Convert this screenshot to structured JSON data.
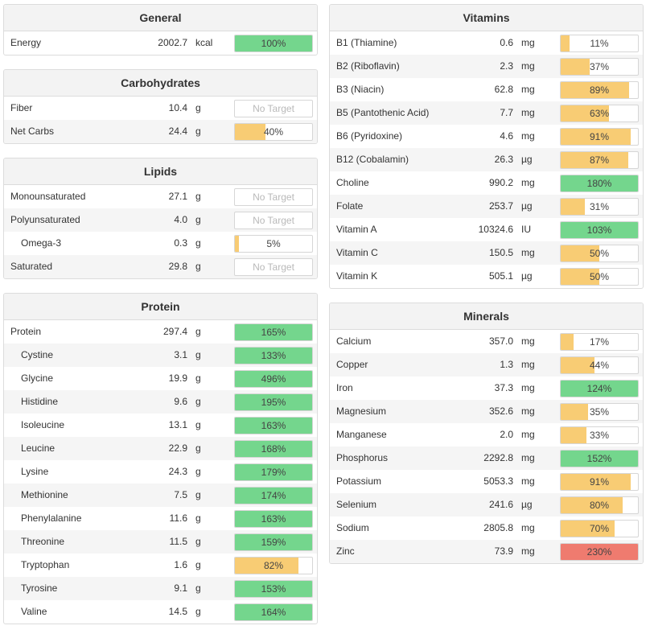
{
  "colors": {
    "green": "#74d68d",
    "yellow": "#f8cc74",
    "red": "#ef7b6f",
    "empty": "#ffffff"
  },
  "panels": [
    {
      "id": "general",
      "column": "left",
      "title": "General",
      "rows": [
        {
          "name": "Energy",
          "amount": "2002.7",
          "unit": "kcal",
          "pct": "100%",
          "fill": 1.0,
          "color": "green"
        }
      ]
    },
    {
      "id": "carbohydrates",
      "column": "left",
      "title": "Carbohydrates",
      "rows": [
        {
          "name": "Fiber",
          "amount": "10.4",
          "unit": "g",
          "pct": "No Target",
          "fill": 0,
          "color": "none"
        },
        {
          "name": "Net Carbs",
          "amount": "24.4",
          "unit": "g",
          "pct": "40%",
          "fill": 0.4,
          "color": "yellow"
        }
      ]
    },
    {
      "id": "lipids",
      "column": "left",
      "title": "Lipids",
      "rows": [
        {
          "name": "Monounsaturated",
          "amount": "27.1",
          "unit": "g",
          "pct": "No Target",
          "fill": 0,
          "color": "none"
        },
        {
          "name": "Polyunsaturated",
          "amount": "4.0",
          "unit": "g",
          "pct": "No Target",
          "fill": 0,
          "color": "none"
        },
        {
          "name": "Omega-3",
          "amount": "0.3",
          "unit": "g",
          "pct": "5%",
          "fill": 0.05,
          "color": "yellow",
          "sub": true
        },
        {
          "name": "Saturated",
          "amount": "29.8",
          "unit": "g",
          "pct": "No Target",
          "fill": 0,
          "color": "none"
        }
      ]
    },
    {
      "id": "protein",
      "column": "left",
      "title": "Protein",
      "rows": [
        {
          "name": "Protein",
          "amount": "297.4",
          "unit": "g",
          "pct": "165%",
          "fill": 1.0,
          "color": "green"
        },
        {
          "name": "Cystine",
          "amount": "3.1",
          "unit": "g",
          "pct": "133%",
          "fill": 1.0,
          "color": "green",
          "sub": true
        },
        {
          "name": "Glycine",
          "amount": "19.9",
          "unit": "g",
          "pct": "496%",
          "fill": 1.0,
          "color": "green",
          "sub": true
        },
        {
          "name": "Histidine",
          "amount": "9.6",
          "unit": "g",
          "pct": "195%",
          "fill": 1.0,
          "color": "green",
          "sub": true
        },
        {
          "name": "Isoleucine",
          "amount": "13.1",
          "unit": "g",
          "pct": "163%",
          "fill": 1.0,
          "color": "green",
          "sub": true
        },
        {
          "name": "Leucine",
          "amount": "22.9",
          "unit": "g",
          "pct": "168%",
          "fill": 1.0,
          "color": "green",
          "sub": true
        },
        {
          "name": "Lysine",
          "amount": "24.3",
          "unit": "g",
          "pct": "179%",
          "fill": 1.0,
          "color": "green",
          "sub": true
        },
        {
          "name": "Methionine",
          "amount": "7.5",
          "unit": "g",
          "pct": "174%",
          "fill": 1.0,
          "color": "green",
          "sub": true
        },
        {
          "name": "Phenylalanine",
          "amount": "11.6",
          "unit": "g",
          "pct": "163%",
          "fill": 1.0,
          "color": "green",
          "sub": true
        },
        {
          "name": "Threonine",
          "amount": "11.5",
          "unit": "g",
          "pct": "159%",
          "fill": 1.0,
          "color": "green",
          "sub": true
        },
        {
          "name": "Tryptophan",
          "amount": "1.6",
          "unit": "g",
          "pct": "82%",
          "fill": 0.82,
          "color": "yellow",
          "sub": true
        },
        {
          "name": "Tyrosine",
          "amount": "9.1",
          "unit": "g",
          "pct": "153%",
          "fill": 1.0,
          "color": "green",
          "sub": true
        },
        {
          "name": "Valine",
          "amount": "14.5",
          "unit": "g",
          "pct": "164%",
          "fill": 1.0,
          "color": "green",
          "sub": true
        }
      ]
    },
    {
      "id": "vitamins",
      "column": "right",
      "title": "Vitamins",
      "rows": [
        {
          "name": "B1 (Thiamine)",
          "amount": "0.6",
          "unit": "mg",
          "pct": "11%",
          "fill": 0.11,
          "color": "yellow"
        },
        {
          "name": "B2 (Riboflavin)",
          "amount": "2.3",
          "unit": "mg",
          "pct": "37%",
          "fill": 0.37,
          "color": "yellow"
        },
        {
          "name": "B3 (Niacin)",
          "amount": "62.8",
          "unit": "mg",
          "pct": "89%",
          "fill": 0.89,
          "color": "yellow"
        },
        {
          "name": "B5 (Pantothenic Acid)",
          "amount": "7.7",
          "unit": "mg",
          "pct": "63%",
          "fill": 0.63,
          "color": "yellow"
        },
        {
          "name": "B6 (Pyridoxine)",
          "amount": "4.6",
          "unit": "mg",
          "pct": "91%",
          "fill": 0.91,
          "color": "yellow"
        },
        {
          "name": "B12 (Cobalamin)",
          "amount": "26.3",
          "unit": "µg",
          "pct": "87%",
          "fill": 0.87,
          "color": "yellow"
        },
        {
          "name": "Choline",
          "amount": "990.2",
          "unit": "mg",
          "pct": "180%",
          "fill": 1.0,
          "color": "green"
        },
        {
          "name": "Folate",
          "amount": "253.7",
          "unit": "µg",
          "pct": "31%",
          "fill": 0.31,
          "color": "yellow"
        },
        {
          "name": "Vitamin A",
          "amount": "10324.6",
          "unit": "IU",
          "pct": "103%",
          "fill": 1.0,
          "color": "green"
        },
        {
          "name": "Vitamin C",
          "amount": "150.5",
          "unit": "mg",
          "pct": "50%",
          "fill": 0.5,
          "color": "yellow"
        },
        {
          "name": "Vitamin K",
          "amount": "505.1",
          "unit": "µg",
          "pct": "50%",
          "fill": 0.5,
          "color": "yellow"
        }
      ]
    },
    {
      "id": "minerals",
      "column": "right",
      "title": "Minerals",
      "rows": [
        {
          "name": "Calcium",
          "amount": "357.0",
          "unit": "mg",
          "pct": "17%",
          "fill": 0.17,
          "color": "yellow"
        },
        {
          "name": "Copper",
          "amount": "1.3",
          "unit": "mg",
          "pct": "44%",
          "fill": 0.44,
          "color": "yellow"
        },
        {
          "name": "Iron",
          "amount": "37.3",
          "unit": "mg",
          "pct": "124%",
          "fill": 1.0,
          "color": "green"
        },
        {
          "name": "Magnesium",
          "amount": "352.6",
          "unit": "mg",
          "pct": "35%",
          "fill": 0.35,
          "color": "yellow"
        },
        {
          "name": "Manganese",
          "amount": "2.0",
          "unit": "mg",
          "pct": "33%",
          "fill": 0.33,
          "color": "yellow"
        },
        {
          "name": "Phosphorus",
          "amount": "2292.8",
          "unit": "mg",
          "pct": "152%",
          "fill": 1.0,
          "color": "green"
        },
        {
          "name": "Potassium",
          "amount": "5053.3",
          "unit": "mg",
          "pct": "91%",
          "fill": 0.91,
          "color": "yellow"
        },
        {
          "name": "Selenium",
          "amount": "241.6",
          "unit": "µg",
          "pct": "80%",
          "fill": 0.8,
          "color": "yellow"
        },
        {
          "name": "Sodium",
          "amount": "2805.8",
          "unit": "mg",
          "pct": "70%",
          "fill": 0.7,
          "color": "yellow"
        },
        {
          "name": "Zinc",
          "amount": "73.9",
          "unit": "mg",
          "pct": "230%",
          "fill": 1.0,
          "color": "red"
        }
      ]
    }
  ]
}
